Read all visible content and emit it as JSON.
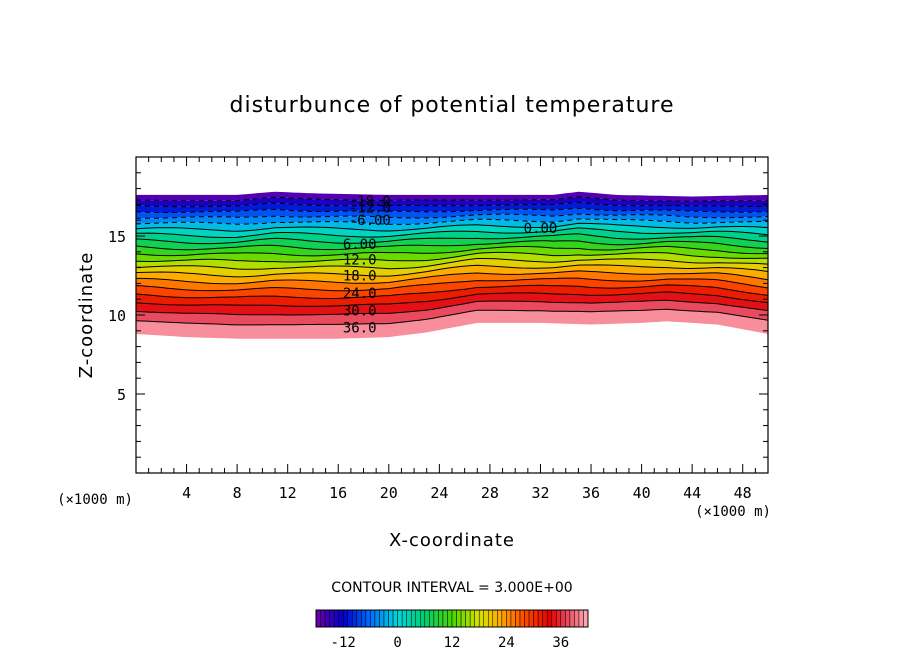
{
  "chart_data": {
    "type": "contour",
    "title": "disturbunce of potential temperature",
    "xlabel": "X-coordinate",
    "ylabel": "Z-coordinate",
    "x_unit_left": "(×1000 m)",
    "x_unit_right": "(×1000 m)",
    "xlim": [
      0,
      50
    ],
    "ylim": [
      0,
      20
    ],
    "x_ticks": [
      4,
      8,
      12,
      16,
      20,
      24,
      28,
      32,
      36,
      40,
      44,
      48
    ],
    "y_ticks": [
      5,
      10,
      15
    ],
    "field_range": [
      -18,
      42
    ],
    "contour_interval_text": "CONTOUR INTERVAL = 3.000E+00",
    "contour_levels": [
      -18,
      -15,
      -12,
      -9,
      -6,
      -3,
      0,
      3,
      6,
      9,
      12,
      15,
      18,
      21,
      24,
      27,
      30,
      33,
      36,
      39,
      42
    ],
    "contour_labels": [
      {
        "text": "-18.0",
        "x": 18.5,
        "z": 17.2
      },
      {
        "text": "-12.0",
        "x": 18.5,
        "z": 16.8
      },
      {
        "text": "-6.00",
        "x": 18.5,
        "z": 16.0
      },
      {
        "text": "0.00",
        "x": 32.0,
        "z": 15.5
      },
      {
        "text": "6.00",
        "x": 17.7,
        "z": 14.5
      },
      {
        "text": "12.0",
        "x": 17.7,
        "z": 13.5
      },
      {
        "text": "18.0",
        "x": 17.7,
        "z": 12.5
      },
      {
        "text": "24.0",
        "x": 17.7,
        "z": 11.4
      },
      {
        "text": "30.0",
        "x": 17.7,
        "z": 10.3
      },
      {
        "text": "36.0",
        "x": 17.7,
        "z": 9.2
      }
    ],
    "colorbar": {
      "ticks": [
        -12,
        0,
        12,
        24,
        36
      ],
      "range": [
        -18,
        42
      ]
    },
    "top_boundary": [
      [
        0,
        17.6
      ],
      [
        4,
        17.6
      ],
      [
        8,
        17.6
      ],
      [
        11,
        17.8
      ],
      [
        14,
        17.7
      ],
      [
        20,
        17.6
      ],
      [
        28,
        17.6
      ],
      [
        33,
        17.6
      ],
      [
        35,
        17.8
      ],
      [
        38,
        17.6
      ],
      [
        44,
        17.5
      ],
      [
        50,
        17.6
      ]
    ],
    "bottom_boundary": [
      [
        0,
        8.8
      ],
      [
        4,
        8.6
      ],
      [
        8,
        8.5
      ],
      [
        12,
        8.5
      ],
      [
        16,
        8.5
      ],
      [
        20,
        8.6
      ],
      [
        23,
        8.9
      ],
      [
        25,
        9.2
      ],
      [
        27,
        9.5
      ],
      [
        32,
        9.5
      ],
      [
        36,
        9.4
      ],
      [
        40,
        9.5
      ],
      [
        42,
        9.6
      ],
      [
        44,
        9.5
      ],
      [
        46,
        9.4
      ],
      [
        48,
        9.1
      ],
      [
        50,
        8.8
      ]
    ],
    "height_exponent": 0.78
  }
}
